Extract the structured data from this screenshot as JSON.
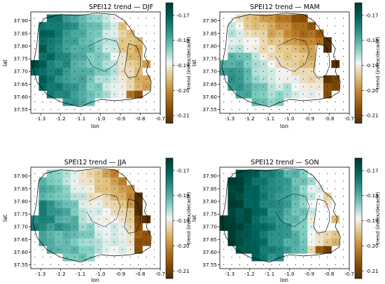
{
  "chart_data": [
    {
      "type": "heatmap",
      "title": "SPEI12 trend — DJF",
      "xlabel": "lon",
      "ylabel": "lat",
      "colorbar_label": "trend (index/decade)",
      "xlim": [
        -1.35,
        -0.7
      ],
      "ylim": [
        37.535,
        37.935
      ],
      "xticks": [
        "-1.3",
        "-1.2",
        "-1.1",
        "-1.0",
        "-0.9",
        "-0.8",
        "-0.7"
      ],
      "yticks": [
        "37.55",
        "37.60",
        "37.65",
        "37.70",
        "37.75",
        "37.80",
        "37.85",
        "37.90"
      ],
      "colorbar_ticks": [
        "-0.17",
        "-0.18",
        "-0.19",
        "-0.20",
        "-0.21"
      ],
      "color_range": [
        -0.213,
        -0.165
      ],
      "pattern": "west_high"
    },
    {
      "type": "heatmap",
      "title": "SPEI12 trend — MAM",
      "xlabel": "lon",
      "ylabel": "lat",
      "colorbar_label": "trend (index/decade)",
      "xlim": [
        -1.35,
        -0.7
      ],
      "ylim": [
        37.535,
        37.935
      ],
      "xticks": [
        "-1.3",
        "-1.2",
        "-1.1",
        "-1.0",
        "-0.9",
        "-0.8",
        "-0.7"
      ],
      "yticks": [
        "37.55",
        "37.60",
        "37.65",
        "37.70",
        "37.75",
        "37.80",
        "37.85",
        "37.90"
      ],
      "colorbar_ticks": [
        "-0.17",
        "-0.18",
        "-0.19",
        "-0.20",
        "-0.21"
      ],
      "color_range": [
        -0.213,
        -0.165
      ],
      "pattern": "northeast_low"
    },
    {
      "type": "heatmap",
      "title": "SPEI12 trend — JJA",
      "xlabel": "lon",
      "ylabel": "lat",
      "colorbar_label": "trend (index/decade)",
      "xlim": [
        -1.35,
        -0.7
      ],
      "ylim": [
        37.535,
        37.935
      ],
      "xticks": [
        "-1.3",
        "-1.2",
        "-1.1",
        "-1.0",
        "-0.9",
        "-0.8",
        "-0.7"
      ],
      "yticks": [
        "37.55",
        "37.60",
        "37.65",
        "37.70",
        "37.75",
        "37.80",
        "37.85",
        "37.90"
      ],
      "colorbar_ticks": [
        "-0.17",
        "-0.18",
        "-0.19",
        "-0.20",
        "-0.21"
      ],
      "color_range": [
        -0.213,
        -0.165
      ],
      "pattern": "east_low"
    },
    {
      "type": "heatmap",
      "title": "SPEI12 trend — SON",
      "xlabel": "lon",
      "ylabel": "lat",
      "colorbar_label": "trend (index/decade)",
      "xlim": [
        -1.35,
        -0.7
      ],
      "ylim": [
        37.535,
        37.935
      ],
      "xticks": [
        "-1.3",
        "-1.2",
        "-1.1",
        "-1.0",
        "-0.9",
        "-0.8",
        "-0.7"
      ],
      "yticks": [
        "37.55",
        "37.60",
        "37.65",
        "37.70",
        "37.75",
        "37.80",
        "37.85",
        "37.90"
      ],
      "colorbar_ticks": [
        "-0.17",
        "-0.18",
        "-0.19",
        "-0.20",
        "-0.21"
      ],
      "color_range": [
        -0.213,
        -0.165
      ],
      "pattern": "west_strong_high"
    }
  ],
  "colors": {
    "high": "#01463c",
    "mid": "#f5f5f5",
    "low": "#6a3b05"
  }
}
